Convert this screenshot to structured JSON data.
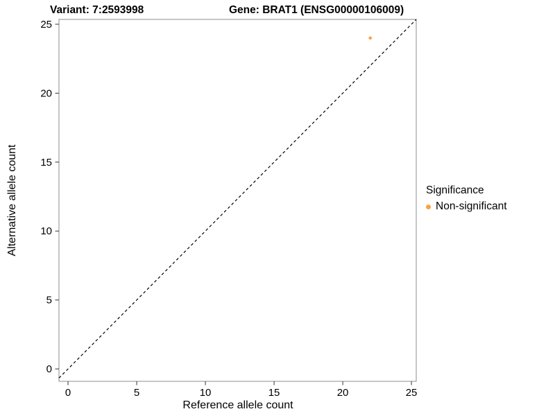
{
  "chart_data": {
    "type": "scatter",
    "titles": {
      "left": "Variant: 7:2593998",
      "right": "Gene: BRAT1 (ENSG00000106009)"
    },
    "xlabel": "Reference allele count",
    "ylabel": "Alternative allele count",
    "xlim": [
      -0.66,
      25.35
    ],
    "ylim": [
      -0.9,
      25.35
    ],
    "xticks": [
      0,
      5,
      10,
      15,
      20,
      25
    ],
    "yticks": [
      0,
      5,
      10,
      15,
      20,
      25
    ],
    "grid": false,
    "points": [
      {
        "x": 22,
        "y": 24,
        "series": "Non-significant",
        "color": "#F9A242"
      }
    ],
    "identity_line": {
      "style": "dashed",
      "slope": 1,
      "intercept": 0,
      "color": "#000000"
    },
    "legend": {
      "title": "Significance",
      "position": "right",
      "entries": [
        {
          "label": "Non-significant",
          "color": "#F9A242"
        }
      ]
    },
    "panel_border_color": "#8C8C8C"
  }
}
